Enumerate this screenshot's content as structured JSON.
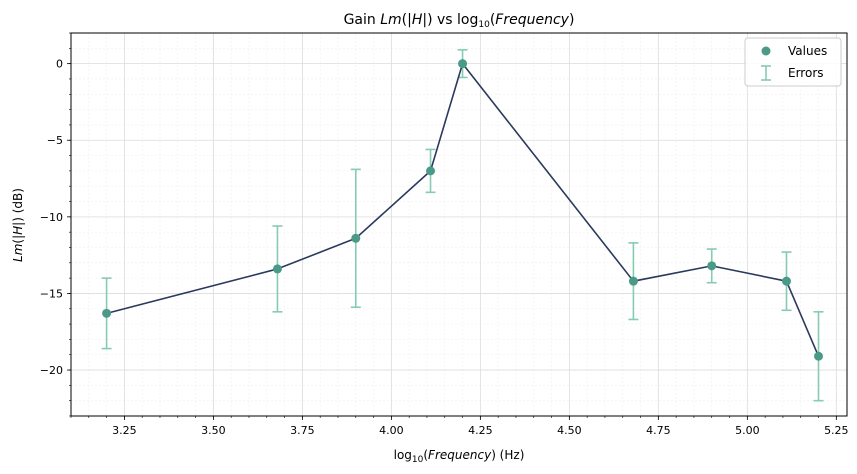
{
  "chart_data": {
    "type": "line",
    "title": "Gain Lm(|H|) vs log₁₀(Frequency)",
    "xlabel": "log₁₀(Frequency) (Hz)",
    "ylabel": "Lm(|H|) (dB)",
    "xlim": [
      3.1,
      5.28
    ],
    "ylim": [
      -23,
      2
    ],
    "xticks": [
      3.25,
      3.5,
      3.75,
      4.0,
      4.25,
      4.5,
      4.75,
      5.0,
      5.25
    ],
    "xtick_labels": [
      "3.25",
      "3.50",
      "3.75",
      "4.00",
      "4.25",
      "4.50",
      "4.75",
      "5.00",
      "5.25"
    ],
    "yticks": [
      0,
      -5,
      -10,
      -15,
      -20
    ],
    "ytick_labels": [
      "0",
      "−5",
      "−10",
      "−15",
      "−20"
    ],
    "grid": true,
    "legend_position": "top-right",
    "series": [
      {
        "name": "Values",
        "x": [
          3.2,
          3.68,
          3.9,
          4.11,
          4.2,
          4.68,
          4.9,
          5.11,
          5.2
        ],
        "y": [
          -16.3,
          -13.4,
          -11.4,
          -7.0,
          0.0,
          -14.2,
          -13.2,
          -14.2,
          -19.1
        ],
        "yerr": [
          2.3,
          2.8,
          4.5,
          1.4,
          0.9,
          2.5,
          1.1,
          1.9,
          2.9
        ]
      }
    ],
    "legend": [
      {
        "label": "Values",
        "kind": "marker"
      },
      {
        "label": "Errors",
        "kind": "errorbar"
      }
    ],
    "colors": {
      "line": "#2b3a5c",
      "marker": "#4a9a87",
      "errorbar": "#86cbb3",
      "grid_major": "#dcdcdc",
      "grid_minor": "#efefef"
    }
  }
}
